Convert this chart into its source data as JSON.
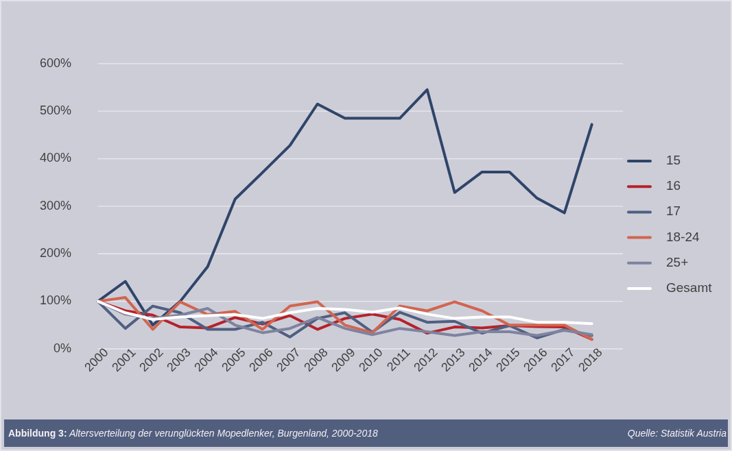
{
  "chart_data": {
    "type": "line",
    "title": "Abbildung 3: Altersverteilung der verunglückten Mopedlenker, Burgenland, 2000-2018",
    "annotations": [
      "Quelle: Statistik Austria"
    ],
    "categories": [
      "2000",
      "2001",
      "2002",
      "2003",
      "2004",
      "2005",
      "2006",
      "2007",
      "2008",
      "2009",
      "2010",
      "2011",
      "2012",
      "2013",
      "2014",
      "2015",
      "2016",
      "2017",
      "2018"
    ],
    "series": [
      {
        "name": "15",
        "color": "#2f4569",
        "values": [
          100,
          142,
          50,
          100,
          173,
          315,
          371,
          428,
          515,
          485,
          485,
          485,
          545,
          329,
          372,
          372,
          317,
          286,
          472
        ]
      },
      {
        "name": "16",
        "color": "#b5222a",
        "values": [
          100,
          80,
          71,
          46,
          44,
          66,
          52,
          70,
          41,
          64,
          73,
          62,
          33,
          46,
          44,
          49,
          47,
          46,
          20
        ]
      },
      {
        "name": "17",
        "color": "#4f5f80",
        "values": [
          100,
          43,
          90,
          76,
          41,
          41,
          56,
          25,
          64,
          76,
          35,
          77,
          56,
          58,
          33,
          49,
          23,
          41,
          28
        ]
      },
      {
        "name": "18-24",
        "color": "#d2654f",
        "values": [
          100,
          108,
          41,
          99,
          72,
          79,
          41,
          90,
          99,
          50,
          34,
          90,
          80,
          99,
          80,
          50,
          50,
          50,
          20
        ]
      },
      {
        "name": "25+",
        "color": "#7e839e",
        "values": [
          100,
          73,
          64,
          71,
          85,
          50,
          34,
          43,
          66,
          43,
          30,
          43,
          36,
          28,
          36,
          36,
          28,
          39,
          30
        ]
      },
      {
        "name": "Gesamt",
        "color": "#ffffff",
        "values": [
          100,
          76,
          62,
          67,
          70,
          72,
          64,
          76,
          85,
          83,
          77,
          86,
          73,
          64,
          67,
          67,
          56,
          56,
          53
        ]
      }
    ],
    "ylim": [
      0,
      600
    ],
    "yticks": [
      {
        "value": 0,
        "label": "0%"
      },
      {
        "value": 100,
        "label": "100%"
      },
      {
        "value": 200,
        "label": "200%"
      },
      {
        "value": 300,
        "label": "300%"
      },
      {
        "value": 400,
        "label": "400%"
      },
      {
        "value": 500,
        "label": "500%"
      },
      {
        "value": 600,
        "label": "600%"
      }
    ],
    "grid": "y",
    "legend": "right"
  }
}
